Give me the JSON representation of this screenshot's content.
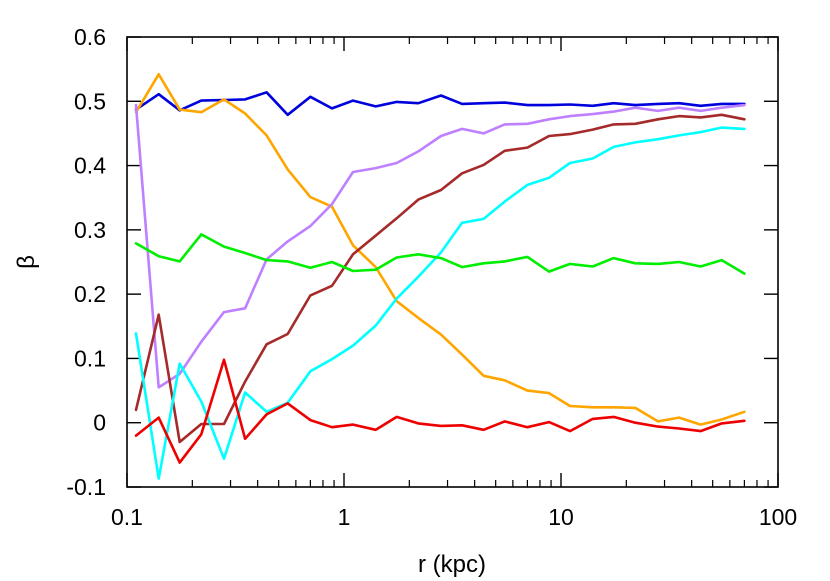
{
  "chart_data": {
    "type": "line",
    "title": "",
    "xlabel": "r (kpc)",
    "ylabel": "β",
    "xscale": "log",
    "xlim": [
      0.1,
      100
    ],
    "ylim": [
      -0.1,
      0.6
    ],
    "x_ticks": [
      {
        "value": 0.1,
        "label": "0.1"
      },
      {
        "value": 1,
        "label": "1"
      },
      {
        "value": 10,
        "label": "10"
      },
      {
        "value": 100,
        "label": "100"
      }
    ],
    "y_ticks": [
      {
        "value": -0.1,
        "label": "-0.1"
      },
      {
        "value": 0,
        "label": "0"
      },
      {
        "value": 0.1,
        "label": "0.1"
      },
      {
        "value": 0.2,
        "label": "0.2"
      },
      {
        "value": 0.3,
        "label": "0.3"
      },
      {
        "value": 0.4,
        "label": "0.4"
      },
      {
        "value": 0.5,
        "label": "0.5"
      },
      {
        "value": 0.6,
        "label": "0.6"
      }
    ],
    "grid": false,
    "legend": "none",
    "x": [
      0.11,
      0.14,
      0.175,
      0.22,
      0.28,
      0.35,
      0.44,
      0.55,
      0.7,
      0.88,
      1.1,
      1.4,
      1.75,
      2.2,
      2.8,
      3.5,
      4.4,
      5.5,
      7.0,
      8.8,
      11,
      14,
      17.5,
      22,
      28,
      35,
      44,
      55,
      70
    ],
    "series": [
      {
        "color": "#0000dd",
        "values": [
          0.487,
          0.511,
          0.486,
          0.501,
          0.502,
          0.503,
          0.514,
          0.479,
          0.507,
          0.489,
          0.501,
          0.492,
          0.499,
          0.497,
          0.509,
          0.496,
          0.497,
          0.498,
          0.494,
          0.494,
          0.495,
          0.493,
          0.497,
          0.494,
          0.496,
          0.497,
          0.493,
          0.496,
          0.496
        ]
      },
      {
        "color": "#ffa500",
        "values": [
          0.483,
          0.542,
          0.487,
          0.483,
          0.503,
          0.481,
          0.447,
          0.394,
          0.351,
          0.336,
          0.276,
          0.242,
          0.189,
          0.163,
          0.137,
          0.106,
          0.073,
          0.066,
          0.05,
          0.046,
          0.026,
          0.024,
          0.024,
          0.023,
          0.002,
          0.008,
          -0.003,
          0.005,
          0.017
        ]
      },
      {
        "color": "#bf80ff",
        "values": [
          0.494,
          0.055,
          0.076,
          0.126,
          0.172,
          0.178,
          0.254,
          0.282,
          0.306,
          0.34,
          0.39,
          0.396,
          0.404,
          0.422,
          0.446,
          0.457,
          0.45,
          0.464,
          0.465,
          0.472,
          0.477,
          0.48,
          0.484,
          0.49,
          0.485,
          0.49,
          0.485,
          0.49,
          0.494
        ]
      },
      {
        "color": "#a52a2a",
        "values": [
          0.02,
          0.168,
          -0.03,
          -0.002,
          -0.002,
          0.064,
          0.122,
          0.138,
          0.198,
          0.213,
          0.262,
          0.291,
          0.318,
          0.347,
          0.362,
          0.388,
          0.401,
          0.423,
          0.428,
          0.446,
          0.449,
          0.456,
          0.464,
          0.465,
          0.472,
          0.477,
          0.475,
          0.479,
          0.472
        ]
      },
      {
        "color": "#00ffff",
        "values": [
          0.139,
          -0.087,
          0.092,
          0.033,
          -0.056,
          0.047,
          0.017,
          0.031,
          0.08,
          0.099,
          0.12,
          0.151,
          0.193,
          0.227,
          0.265,
          0.311,
          0.317,
          0.344,
          0.37,
          0.381,
          0.404,
          0.411,
          0.429,
          0.436,
          0.441,
          0.447,
          0.452,
          0.459,
          0.457
        ]
      },
      {
        "color": "#00ee00",
        "values": [
          0.279,
          0.259,
          0.251,
          0.293,
          0.274,
          0.264,
          0.253,
          0.251,
          0.241,
          0.25,
          0.236,
          0.238,
          0.257,
          0.262,
          0.256,
          0.242,
          0.248,
          0.251,
          0.258,
          0.235,
          0.247,
          0.243,
          0.256,
          0.248,
          0.247,
          0.25,
          0.243,
          0.253,
          0.232
        ]
      },
      {
        "color": "#ee0000",
        "values": [
          -0.02,
          0.008,
          -0.062,
          -0.018,
          0.098,
          -0.025,
          0.013,
          0.03,
          0.004,
          -0.007,
          -0.003,
          -0.011,
          0.009,
          -0.001,
          -0.005,
          -0.004,
          -0.011,
          0.002,
          -0.007,
          0.001,
          -0.013,
          0.006,
          0.009,
          0.0,
          -0.006,
          -0.009,
          -0.013,
          -0.001,
          0.003
        ]
      }
    ]
  }
}
